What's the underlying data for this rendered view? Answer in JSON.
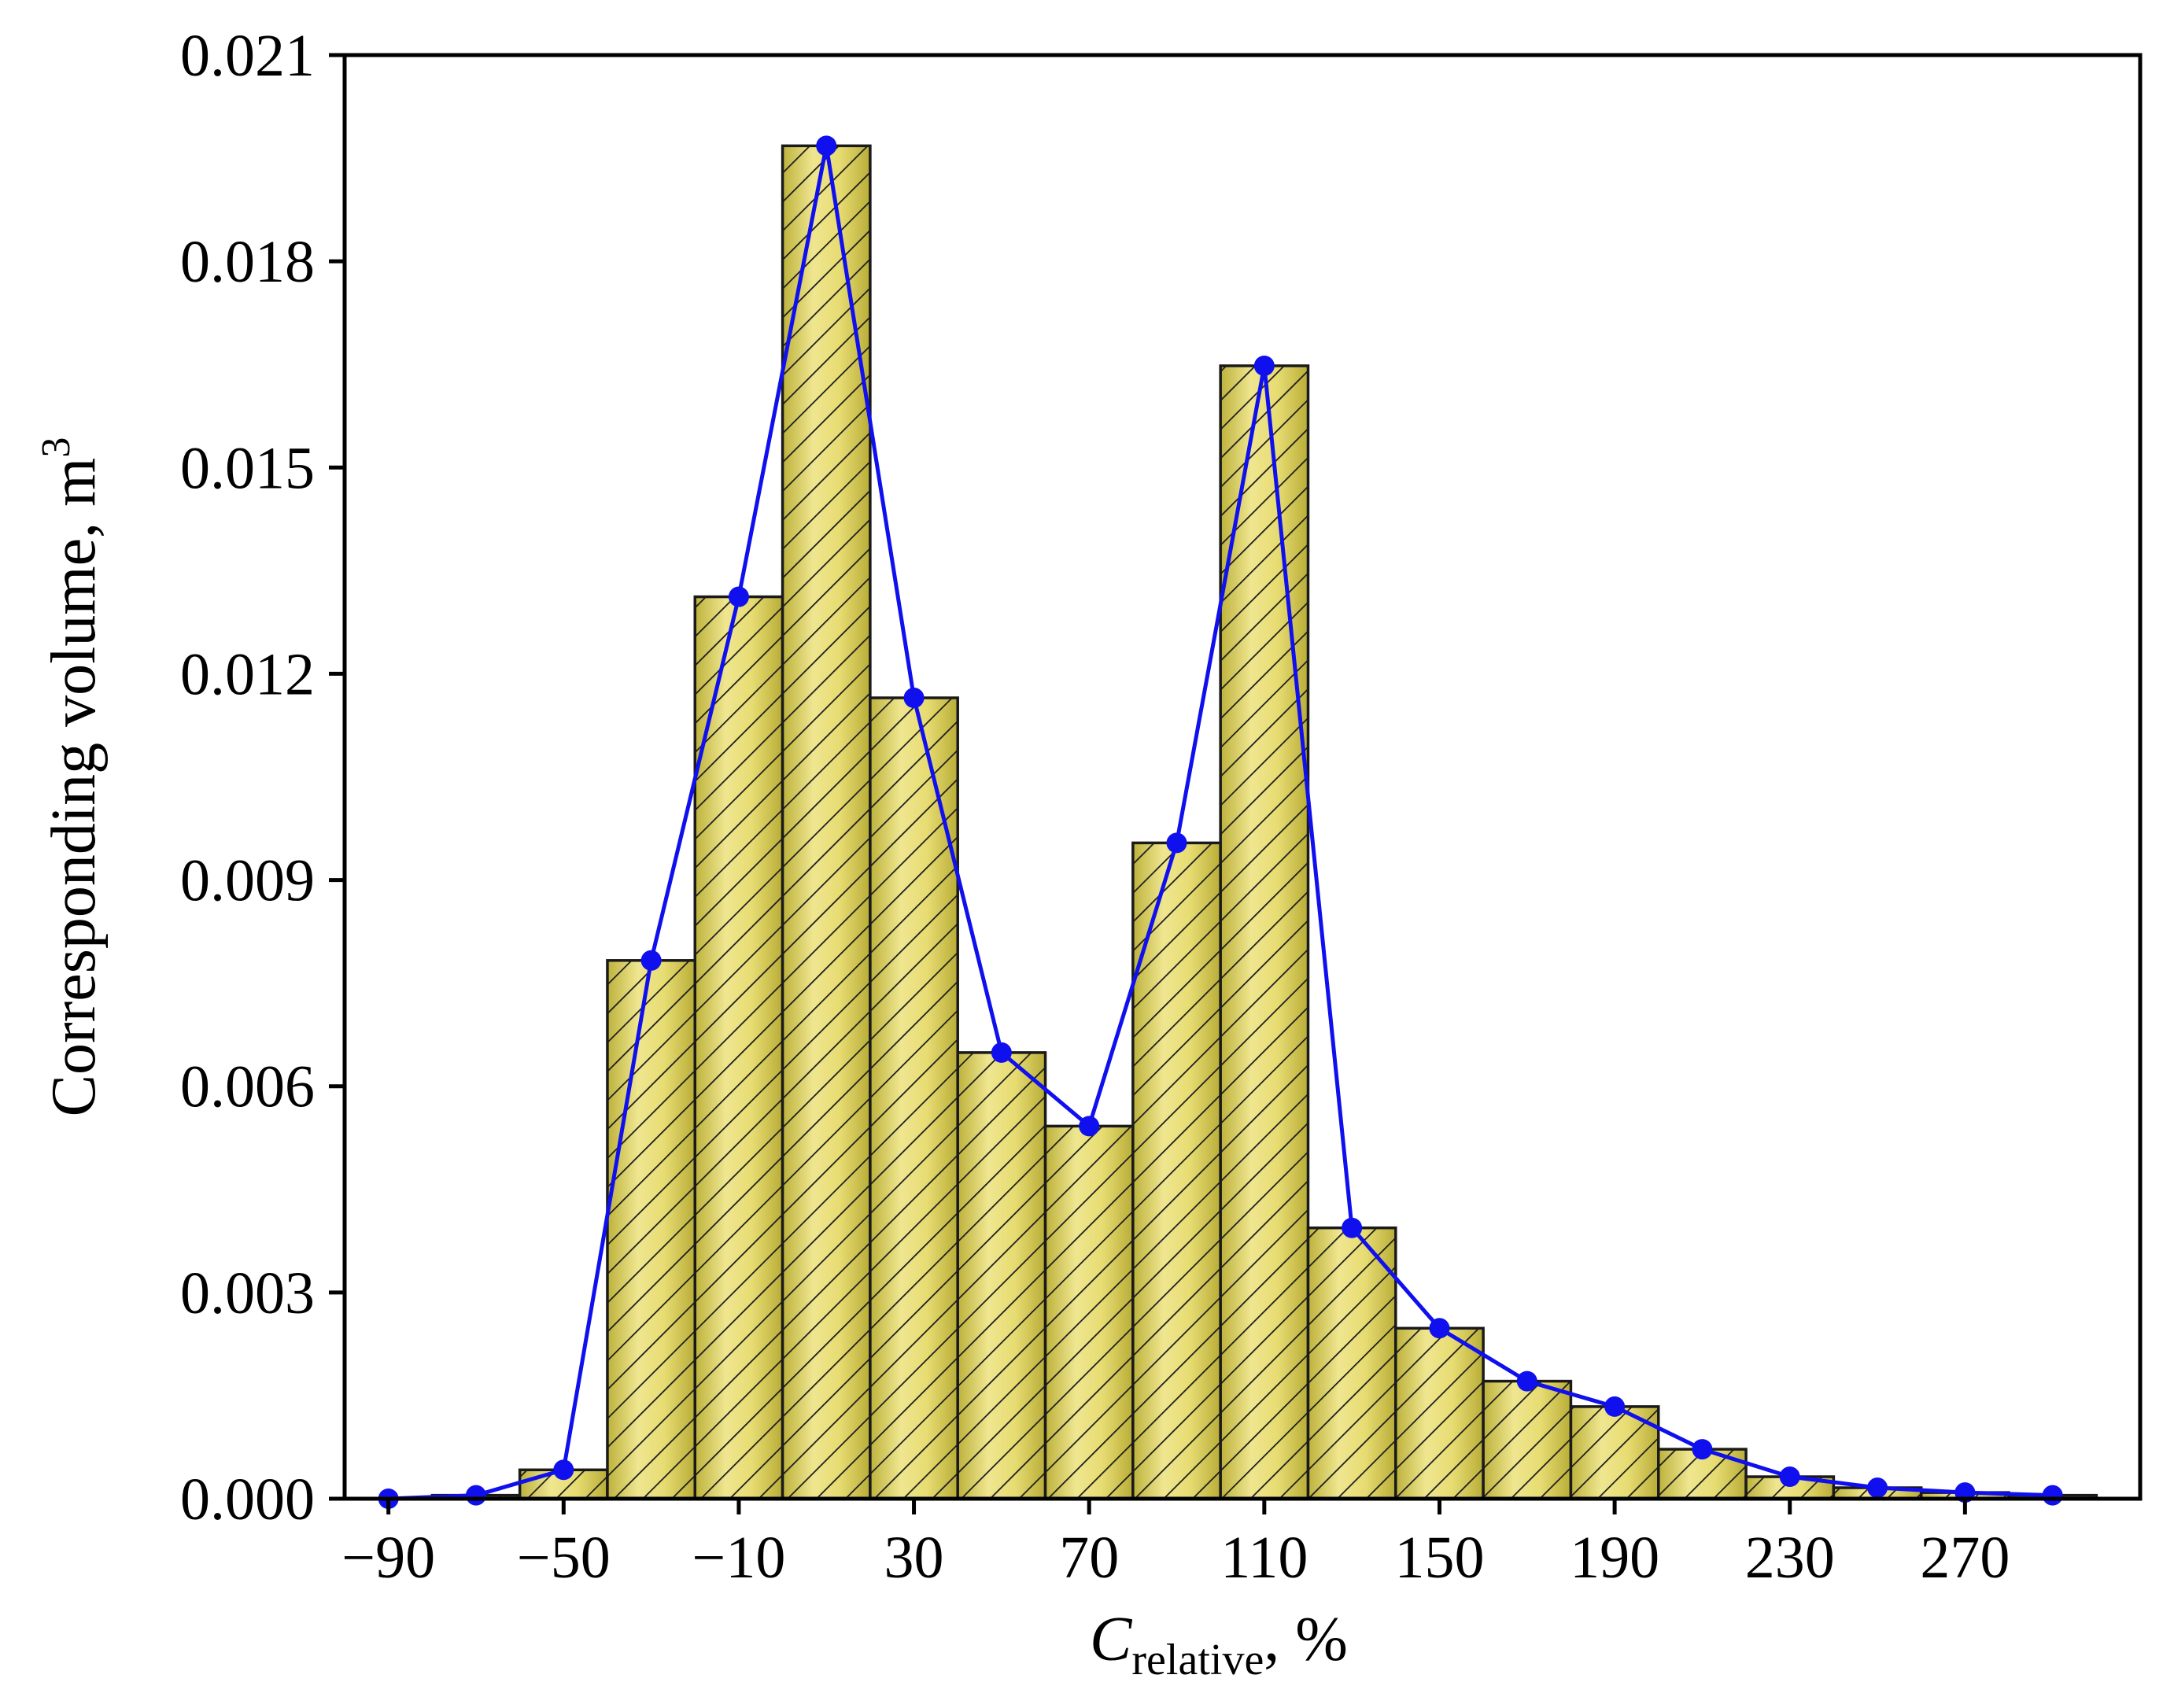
{
  "chart_data": {
    "type": "bar",
    "xlabel": {
      "main": "C",
      "sub": "relative",
      "suffix": ", %"
    },
    "ylabel": {
      "main": "Corresponding volume, m",
      "sup": "3"
    },
    "xlim": [
      -100,
      310
    ],
    "ylim": [
      0,
      0.021
    ],
    "xticks": [
      -90,
      -50,
      -10,
      30,
      70,
      110,
      150,
      190,
      230,
      270
    ],
    "xtick_labels": [
      "−90",
      "−50",
      "−10",
      "30",
      "70",
      "110",
      "150",
      "190",
      "230",
      "270"
    ],
    "yticks": [
      0.0,
      0.003,
      0.006,
      0.009,
      0.012,
      0.015,
      0.018,
      0.021
    ],
    "ytick_labels": [
      "0.000",
      "0.003",
      "0.006",
      "0.009",
      "0.012",
      "0.015",
      "0.018",
      "0.021"
    ],
    "bin_width": 20,
    "bins": [
      {
        "x": -90,
        "value": 0.0
      },
      {
        "x": -70,
        "value": 5e-05
      },
      {
        "x": -50,
        "value": 0.00042
      },
      {
        "x": -30,
        "value": 0.00783
      },
      {
        "x": -10,
        "value": 0.01312
      },
      {
        "x": 10,
        "value": 0.01968
      },
      {
        "x": 30,
        "value": 0.01165
      },
      {
        "x": 50,
        "value": 0.00649
      },
      {
        "x": 70,
        "value": 0.00542
      },
      {
        "x": 90,
        "value": 0.00954
      },
      {
        "x": 110,
        "value": 0.01648
      },
      {
        "x": 130,
        "value": 0.00394
      },
      {
        "x": 150,
        "value": 0.00248
      },
      {
        "x": 170,
        "value": 0.00171
      },
      {
        "x": 190,
        "value": 0.00134
      },
      {
        "x": 210,
        "value": 0.00072
      },
      {
        "x": 230,
        "value": 0.00032
      },
      {
        "x": 250,
        "value": 0.00016
      },
      {
        "x": 270,
        "value": 9e-05
      },
      {
        "x": 290,
        "value": 5e-05
      }
    ],
    "bar_color": "#d9cf58",
    "bar_pattern": "diagonal-hatch",
    "line_color": "#1010ee",
    "grid": false,
    "legend": "none"
  }
}
